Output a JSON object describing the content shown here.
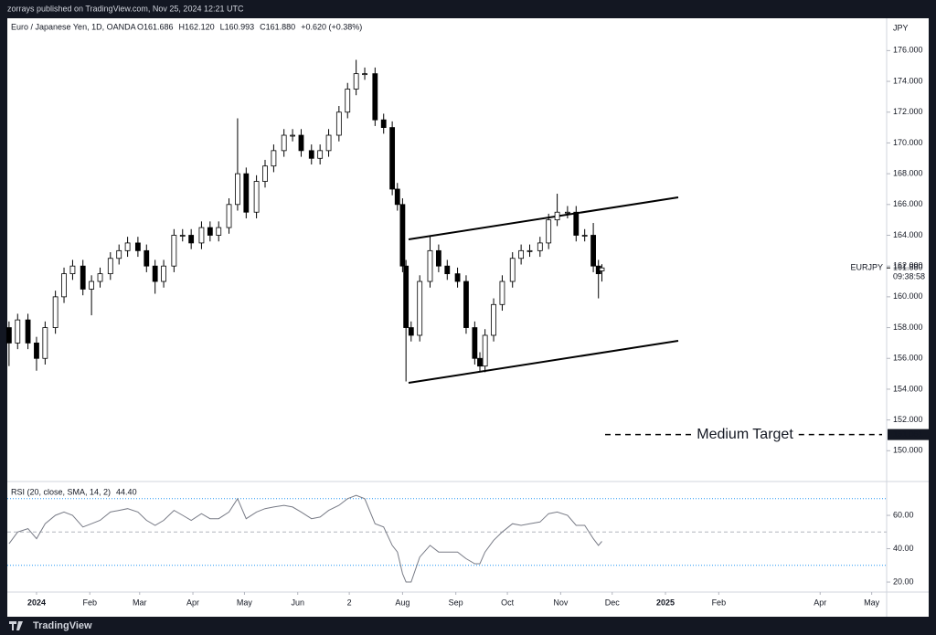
{
  "header": {
    "published": "zorrays published on TradingView.com, Nov 25, 2024 12:21 UTC",
    "footer": "TradingView"
  },
  "chart_data": [
    {
      "type": "candlestick",
      "title": "Euro / Japanese Yen, 1D, OANDA",
      "ohlc_labels": [
        "O161.686",
        "H162.120",
        "L160.993",
        "C161.880",
        "+0.620 (+0.38%)"
      ],
      "currency": "JPY",
      "symbol": "EURJPY",
      "countdown": "09:38:58",
      "up_color": "#ffffff",
      "down_color": "#000000",
      "x": [
        -16,
        -11,
        -5,
        0,
        5,
        11,
        16,
        21,
        27,
        32,
        37,
        43,
        48,
        53,
        59,
        64,
        69,
        74,
        80,
        85,
        90,
        96,
        101,
        106,
        112,
        117,
        122,
        128,
        133,
        138,
        144,
        149,
        154,
        160,
        165,
        170,
        176,
        181,
        186,
        191,
        197,
        202,
        207,
        210,
        213,
        215,
        218,
        223,
        229,
        234,
        239,
        245,
        250,
        255,
        258,
        261,
        266,
        271,
        277,
        282,
        287,
        293,
        298,
        303,
        309,
        314,
        319,
        324,
        327,
        329
      ],
      "open": [
        158,
        157,
        158.5,
        157,
        156,
        158,
        160,
        161.5,
        162,
        160.5,
        161,
        161.5,
        162.5,
        163,
        163.5,
        163,
        162,
        161,
        162,
        164,
        164,
        163.5,
        164.5,
        164,
        164.5,
        166,
        168,
        165.5,
        167.5,
        168.5,
        169.5,
        170.5,
        170.5,
        169.5,
        169,
        169.5,
        170.5,
        172,
        173.5,
        174.5,
        174.5,
        171.5,
        171,
        167,
        166,
        162,
        158,
        157.5,
        161,
        163,
        162,
        161.5,
        161,
        158,
        156,
        155.5,
        157.5,
        159.5,
        161,
        162.5,
        163,
        163,
        163.5,
        165,
        165.5,
        165.5,
        164,
        164,
        162,
        161.686
      ],
      "high": [
        158.4,
        158.9,
        158.9,
        157.4,
        158.4,
        160.4,
        161.9,
        162.4,
        162.4,
        161.4,
        161.9,
        162.9,
        163.4,
        163.9,
        163.9,
        163.4,
        162.4,
        162.4,
        164.4,
        164.4,
        164.4,
        164.9,
        164.9,
        164.9,
        166.4,
        171.6,
        168.4,
        167.9,
        168.9,
        169.9,
        170.9,
        170.9,
        170.9,
        169.9,
        169.9,
        170.9,
        172.4,
        173.9,
        175.4,
        174.9,
        174.9,
        171.9,
        171.4,
        167.4,
        166.4,
        162.4,
        158.4,
        161.4,
        164.0,
        163.4,
        162.4,
        161.9,
        161.4,
        158.4,
        156.4,
        157.9,
        159.9,
        161.4,
        162.9,
        163.4,
        163.4,
        163.9,
        165.4,
        166.7,
        165.9,
        165.9,
        164.4,
        164.8,
        162.4,
        162.12
      ],
      "low": [
        155.5,
        156.6,
        156.6,
        155.2,
        155.6,
        157.6,
        159.6,
        161.1,
        160.1,
        158.8,
        160.6,
        161.1,
        162.1,
        162.6,
        162.6,
        161.6,
        160.2,
        160.6,
        161.6,
        163.6,
        163.1,
        163.1,
        163.6,
        163.6,
        164.1,
        165.6,
        165.1,
        165.1,
        167.1,
        168.1,
        169.1,
        170.1,
        169.1,
        168.6,
        168.6,
        169.1,
        170.1,
        171.6,
        173.1,
        174.1,
        171.1,
        170.6,
        166.6,
        165.6,
        161.6,
        154.5,
        157.1,
        157.1,
        160.6,
        161.6,
        161.1,
        160.6,
        157.6,
        155.6,
        155.1,
        155.1,
        157.1,
        159.1,
        160.6,
        162.1,
        162.6,
        162.6,
        163.1,
        164.6,
        165.1,
        163.6,
        163.6,
        161.6,
        159.9,
        160.993
      ],
      "close": [
        157,
        158.5,
        157,
        156,
        158,
        160,
        161.5,
        162,
        160.5,
        161,
        161.5,
        162.5,
        163,
        163.5,
        163,
        162,
        161,
        162,
        164,
        164,
        163.5,
        164.5,
        164,
        164.5,
        166,
        168,
        165.5,
        167.5,
        168.5,
        169.5,
        170.5,
        170.5,
        169.5,
        169,
        169.5,
        170.5,
        172,
        173.5,
        174.5,
        174.5,
        171.5,
        171,
        167,
        166,
        162,
        158,
        157.5,
        161,
        163,
        162,
        161.5,
        161,
        158,
        156,
        155.5,
        157.5,
        159.5,
        161,
        162.5,
        163,
        163,
        163.5,
        165,
        165.5,
        165.5,
        164,
        164,
        162,
        161.5,
        161.88
      ],
      "xlim": [
        -17,
        494.7
      ],
      "xticks": [
        {
          "value": 0,
          "label": "2024"
        },
        {
          "value": 31,
          "label": "Feb"
        },
        {
          "value": 60,
          "label": "Mar"
        },
        {
          "value": 91,
          "label": "Apr"
        },
        {
          "value": 121,
          "label": "May"
        },
        {
          "value": 152,
          "label": "Jun"
        },
        {
          "value": 182,
          "label": "2"
        },
        {
          "value": 213,
          "label": "Aug"
        },
        {
          "value": 244,
          "label": "Sep"
        },
        {
          "value": 274,
          "label": "Oct"
        },
        {
          "value": 305,
          "label": "Nov"
        },
        {
          "value": 335,
          "label": "Dec"
        },
        {
          "value": 366,
          "label": "2025"
        },
        {
          "value": 397,
          "label": "Feb"
        },
        {
          "value": 456,
          "label": "Apr"
        },
        {
          "value": 486,
          "label": "May"
        }
      ],
      "ylim": [
        148,
        178.1
      ],
      "yticks": [
        {
          "value": 150,
          "label": "150.000"
        },
        {
          "value": 152,
          "label": "152.000"
        },
        {
          "value": 154,
          "label": "154.000"
        },
        {
          "value": 156,
          "label": "156.000"
        },
        {
          "value": 158,
          "label": "158.000"
        },
        {
          "value": 160,
          "label": "160.000"
        },
        {
          "value": 162,
          "label": "162.000"
        },
        {
          "value": 164,
          "label": "164.000"
        },
        {
          "value": 166,
          "label": "166.000"
        },
        {
          "value": 168,
          "label": "168.000"
        },
        {
          "value": 170,
          "label": "170.000"
        },
        {
          "value": 172,
          "label": "172.000"
        },
        {
          "value": 174,
          "label": "174.000"
        },
        {
          "value": 176,
          "label": "176.000"
        }
      ],
      "last_price": {
        "value": 161.88,
        "label": "161.880"
      },
      "target": {
        "value": 151.051,
        "text": "Medium Target"
      }
    },
    {
      "type": "line",
      "title": "RSI (20, close, SMA, 14, 2)",
      "last_label": "44.40",
      "color": "#787b86",
      "x": [
        -16,
        -11,
        -5,
        0,
        5,
        11,
        16,
        21,
        27,
        32,
        37,
        43,
        48,
        53,
        59,
        64,
        69,
        74,
        80,
        85,
        90,
        96,
        101,
        106,
        112,
        117,
        122,
        128,
        133,
        138,
        144,
        149,
        154,
        160,
        165,
        170,
        176,
        181,
        186,
        191,
        197,
        202,
        207,
        210,
        213,
        215,
        218,
        223,
        229,
        234,
        239,
        245,
        250,
        255,
        258,
        261,
        266,
        271,
        277,
        282,
        287,
        293,
        298,
        303,
        309,
        314,
        319,
        324,
        327,
        329
      ],
      "values": [
        43,
        50,
        52,
        46,
        55,
        60,
        62,
        60,
        53,
        55,
        57,
        62,
        63,
        64,
        62,
        57,
        54,
        57,
        63,
        60,
        57,
        61,
        58,
        58,
        62,
        70,
        58,
        62,
        64,
        65,
        66,
        65,
        62,
        58,
        59,
        63,
        66,
        70,
        72,
        70,
        55,
        53,
        42,
        38,
        25,
        20,
        20,
        35,
        42,
        38,
        38,
        38,
        34,
        31,
        31,
        38,
        45,
        50,
        55,
        54,
        55,
        56,
        61,
        62,
        60,
        54,
        54,
        46,
        42,
        44.4
      ],
      "xlim": [
        -17,
        494.7
      ],
      "ylim": [
        14,
        80.3
      ],
      "yticks": [
        {
          "value": 20,
          "label": "20.00"
        },
        {
          "value": 40,
          "label": "40.00"
        },
        {
          "value": 60,
          "label": "60.00"
        }
      ],
      "bands": [
        70,
        30
      ],
      "band_color": "#2196f3",
      "midline": 50
    }
  ]
}
